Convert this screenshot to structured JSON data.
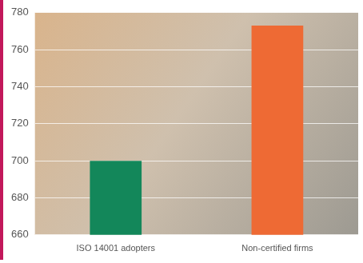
{
  "chart_data": {
    "type": "bar",
    "categories": [
      "ISO 14001 adopters",
      "Non-certified firms"
    ],
    "values": [
      700,
      773
    ],
    "colors": [
      "#13875a",
      "#ee6a34"
    ],
    "ylim": [
      660,
      780
    ],
    "yticks": [
      660,
      680,
      700,
      720,
      740,
      760,
      780
    ],
    "grid": true
  }
}
